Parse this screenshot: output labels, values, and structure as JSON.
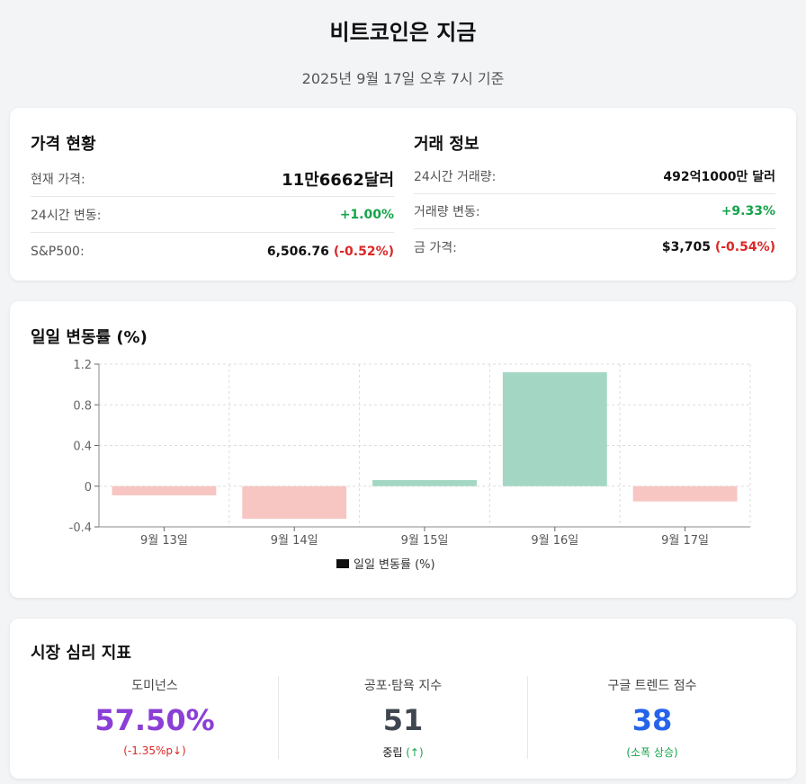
{
  "header": {
    "title": "비트코인은 지금",
    "subtitle": "2025년 9월 17일 오후 7시 기준"
  },
  "price_card": {
    "left_title": "가격 현황",
    "right_title": "거래 정보",
    "left_rows": [
      {
        "label": "현재 가격:",
        "value": "11만6662달러"
      },
      {
        "label": "24시간 변동:",
        "value": "+1.00%"
      },
      {
        "label": "S&P500:",
        "value": "6,506.76",
        "change": "(-0.52%)"
      }
    ],
    "right_rows": [
      {
        "label": "24시간 거래량:",
        "value": "492억1000만 달러"
      },
      {
        "label": "거래량 변동:",
        "value": "+9.33%"
      },
      {
        "label": "금 가격:",
        "value": "$3,705",
        "change": "(-0.54%)"
      }
    ]
  },
  "chart_card": {
    "title": "일일 변동률 (%)"
  },
  "chart_data": {
    "type": "bar",
    "title": "일일 변동률 (%)",
    "categories": [
      "9월 13일",
      "9월 14일",
      "9월 15일",
      "9월 16일",
      "9월 17일"
    ],
    "series": [
      {
        "name": "일일 변동률 (%)",
        "values": [
          -0.09,
          -0.32,
          0.06,
          1.12,
          -0.15
        ]
      }
    ],
    "ylim": [
      -0.4,
      1.2
    ],
    "yticks": [
      "1.2",
      "0.8",
      "0.4",
      "0",
      "-0.4"
    ],
    "ytick_values": [
      1.2,
      0.8,
      0.4,
      0,
      -0.4
    ],
    "grid": true,
    "legend": "bottom",
    "colors": {
      "positive": "#a3d7c3",
      "negative": "#f7c6c2",
      "legend_swatch": "#111111"
    }
  },
  "sentiment_card": {
    "title": "시장 심리 지표",
    "metrics": [
      {
        "label": "도미넌스",
        "value": "57.50%",
        "sub": "(-1.35%p↓)",
        "value_color": "#8b3fd6",
        "sub_color": "#dc2626"
      },
      {
        "label": "공포·탐욕 지수",
        "value": "51",
        "sub_main": "중립",
        "sub": "(↑)",
        "value_color": "#3f4650",
        "sub_color": "#16a34a"
      },
      {
        "label": "구글 트렌드 점수",
        "value": "38",
        "sub": "(소폭 상승)",
        "value_color": "#2563eb",
        "sub_color": "#16a34a"
      }
    ]
  }
}
